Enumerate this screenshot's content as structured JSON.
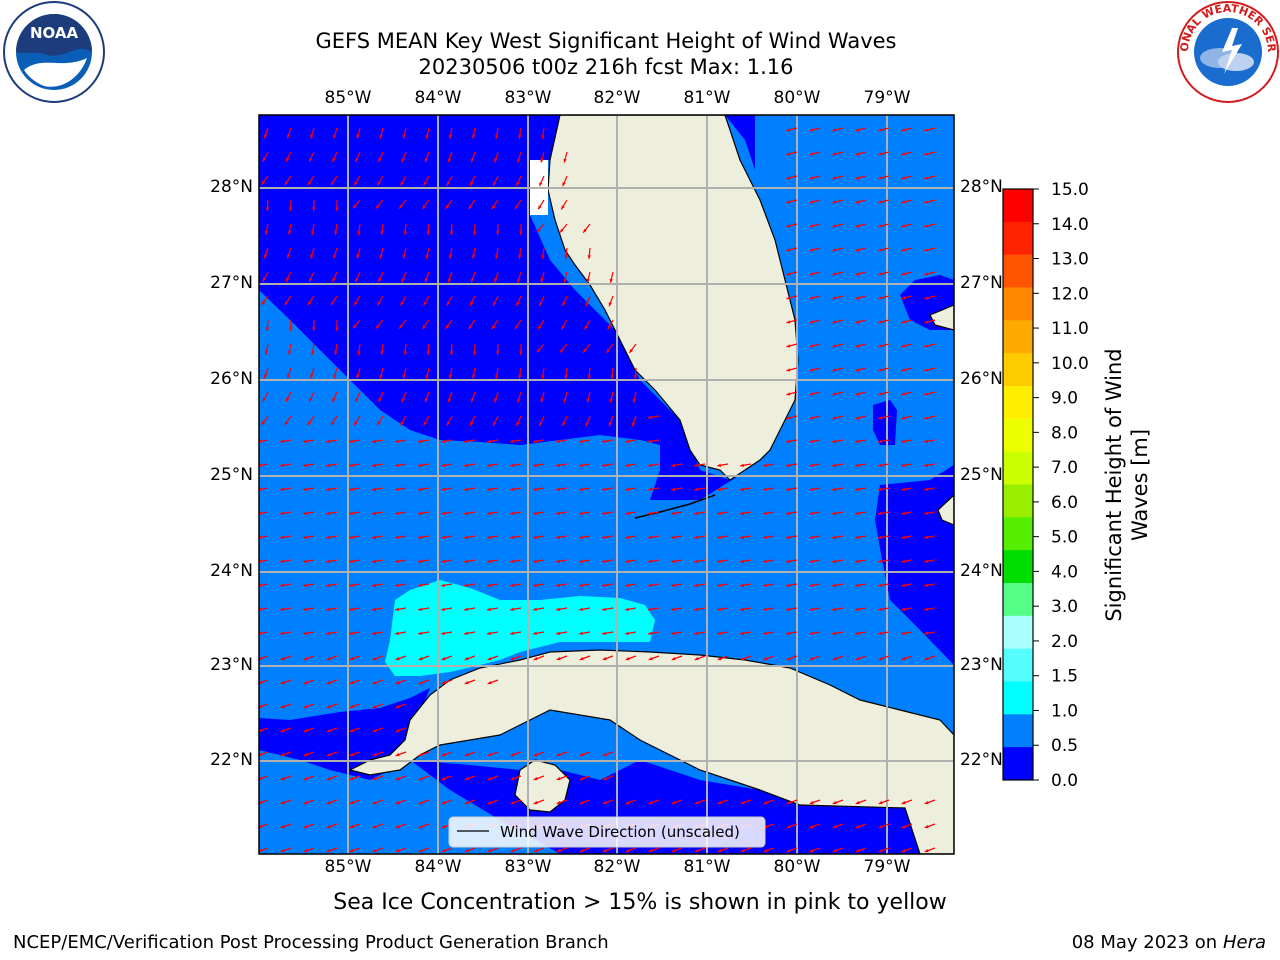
{
  "header": {
    "title_line1": "GEFS MEAN Key West Significant Height of Wind Waves",
    "title_line2": "20230506 t00z 216h fcst   Max: 1.16"
  },
  "logos": {
    "left_logo_text": "NOAA",
    "right_logo_text": "NATIONAL WEATHER SERVICE"
  },
  "map": {
    "lon_labels": [
      "85°W",
      "84°W",
      "83°W",
      "82°W",
      "81°W",
      "80°W",
      "79°W"
    ],
    "lat_labels": [
      "28°N",
      "27°N",
      "26°N",
      "25°N",
      "24°N",
      "23°N",
      "22°N"
    ],
    "legend_label": "Wind Wave Direction (unscaled)",
    "colors": {
      "land": "#eeeedd",
      "range_0_0.5": "#0000ff",
      "range_0.5_1.0": "#0080ff",
      "range_1.0_1.5": "#00ffff",
      "arrow": "#ff0000",
      "grid": "#b0b0b0"
    }
  },
  "colorbar": {
    "title": "Significant Height of Wind Waves [m]",
    "title_line1": "Significant Height of Wind",
    "title_line2": "Waves [m]",
    "ticks": [
      "15.0",
      "14.0",
      "13.0",
      "12.0",
      "11.0",
      "10.0",
      "9.0",
      "8.0",
      "7.0",
      "6.0",
      "5.0",
      "4.0",
      "3.0",
      "2.0",
      "1.5",
      "1.0",
      "0.5",
      "0.0"
    ],
    "colors": [
      "#ff0000",
      "#ff2200",
      "#ff5500",
      "#ff8800",
      "#ffaa00",
      "#ffcc00",
      "#ffee00",
      "#eeff00",
      "#ccff00",
      "#99ee00",
      "#55ee00",
      "#00dd00",
      "#55ff88",
      "#aaffff",
      "#55ffff",
      "#00ffff",
      "#0080ff",
      "#0000ff"
    ]
  },
  "footer": {
    "note": "Sea Ice Concentration > 15% is shown in pink to yellow",
    "credit": "NCEP/EMC/Verification Post Processing Product Generation Branch",
    "date": "08 May 2023 on",
    "host": "Hera"
  }
}
